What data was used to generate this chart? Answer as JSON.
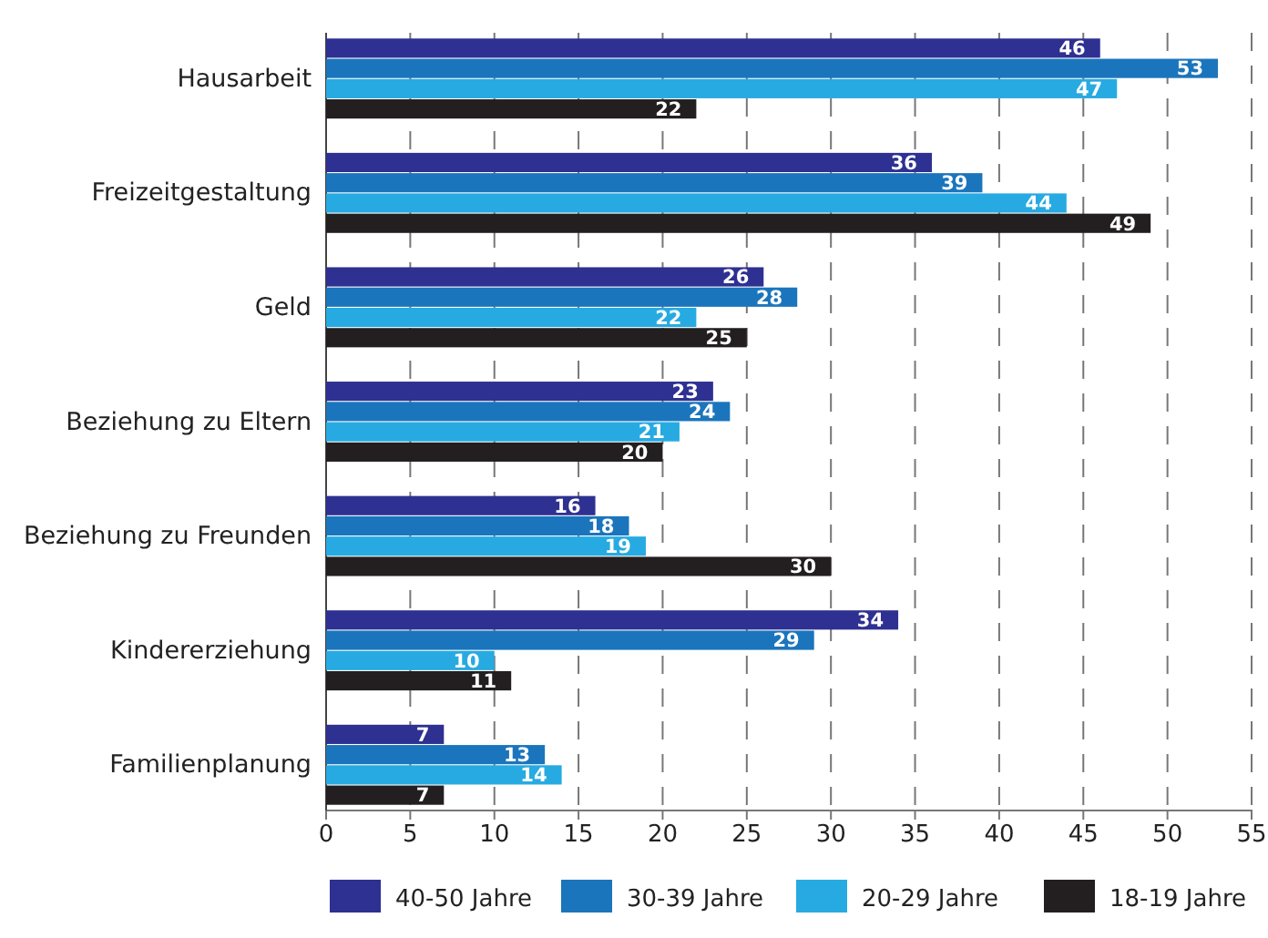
{
  "chart_data": {
    "type": "bar",
    "orientation": "horizontal",
    "categories": [
      "Hausarbeit",
      "Freizeitgestaltung",
      "Geld",
      "Beziehung zu Eltern",
      "Beziehung zu Freunden",
      "Kindererziehung",
      "Familienplanung"
    ],
    "series": [
      {
        "name": "40-50 Jahre",
        "color": "#2e3092",
        "values": [
          46,
          36,
          26,
          23,
          16,
          34,
          7
        ]
      },
      {
        "name": "30-39 Jahre",
        "color": "#1b75bc",
        "values": [
          53,
          39,
          28,
          24,
          18,
          29,
          13
        ]
      },
      {
        "name": "20-29 Jahre",
        "color": "#27aae1",
        "values": [
          47,
          44,
          22,
          21,
          19,
          10,
          14
        ]
      },
      {
        "name": "18-19 Jahre",
        "color": "#231f20",
        "values": [
          22,
          49,
          25,
          20,
          30,
          11,
          7
        ]
      }
    ],
    "xlim": [
      0,
      55
    ],
    "xticks": [
      0,
      5,
      10,
      15,
      20,
      25,
      30,
      35,
      40,
      45,
      50,
      55
    ],
    "grid": "x",
    "legend": "bottom",
    "data_labels": true
  }
}
